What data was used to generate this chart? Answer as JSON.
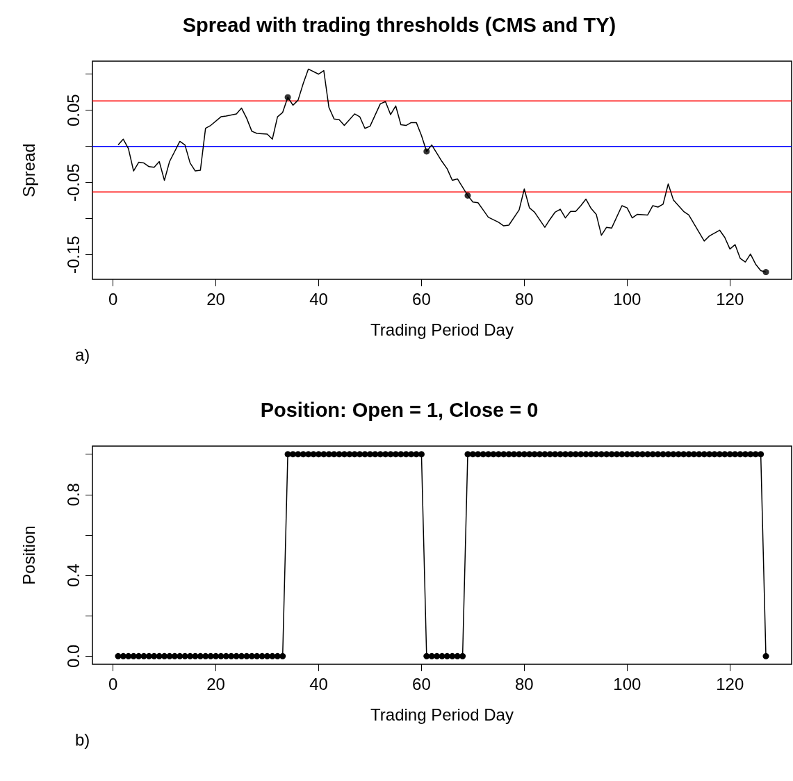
{
  "chart_data": [
    {
      "type": "line",
      "title": "Spread with trading thresholds (CMS and TY)",
      "xlabel": "Trading Period Day",
      "ylabel": "Spread",
      "annotations": [
        "a)"
      ],
      "grid": false,
      "xlim": [
        -4,
        132
      ],
      "xticks": [
        0,
        20,
        40,
        60,
        80,
        100,
        120
      ],
      "ylim": [
        -0.184,
        0.118
      ],
      "yticks": [
        {
          "value": -0.15,
          "label": "-0.15"
        },
        {
          "value": -0.1,
          "label": null
        },
        {
          "value": -0.05,
          "label": "-0.05"
        },
        {
          "value": 0,
          "label": null
        },
        {
          "value": 0.05,
          "label": "0.05"
        },
        {
          "value": 0.1,
          "label": null
        }
      ],
      "ref_lines": [
        {
          "axis": "y",
          "value": 0.063,
          "color": "#ff0000"
        },
        {
          "axis": "y",
          "value": 0,
          "color": "#0000ff"
        },
        {
          "axis": "y",
          "value": -0.063,
          "color": "#ff0000"
        }
      ],
      "series": [
        {
          "type": "line",
          "color": "#000000",
          "marker": "none",
          "x": [
            1,
            2,
            3,
            4,
            5,
            6,
            7,
            8,
            9,
            10,
            11,
            13,
            14,
            15,
            16,
            17,
            18,
            19,
            21,
            22,
            24,
            25,
            26,
            27,
            28,
            30,
            31,
            32,
            33,
            34,
            35,
            36,
            37,
            38,
            40,
            41,
            42,
            43,
            44,
            45,
            47,
            48,
            49,
            50,
            52,
            53,
            54,
            55,
            56,
            57,
            58,
            59,
            60,
            61,
            62,
            64,
            65,
            66,
            67,
            69,
            70,
            71,
            72,
            73,
            75,
            76,
            77,
            79,
            80,
            81,
            82,
            84,
            85,
            86,
            87,
            88,
            89,
            90,
            91,
            92,
            93,
            94,
            95,
            96,
            97,
            99,
            100,
            101,
            102,
            104,
            105,
            106,
            107,
            108,
            109,
            111,
            112,
            114,
            115,
            116,
            118,
            119,
            120,
            121,
            122,
            123,
            124,
            125,
            126,
            127
          ],
          "values": [
            0.002,
            0.01,
            -0.003,
            -0.034,
            -0.022,
            -0.023,
            -0.028,
            -0.029,
            -0.021,
            -0.047,
            -0.021,
            0.007,
            0.002,
            -0.023,
            -0.034,
            -0.033,
            0.025,
            0.029,
            0.041,
            0.042,
            0.045,
            0.053,
            0.039,
            0.021,
            0.018,
            0.017,
            0.01,
            0.041,
            0.047,
            0.068,
            0.057,
            0.064,
            0.087,
            0.107,
            0.1,
            0.105,
            0.054,
            0.038,
            0.037,
            0.029,
            0.045,
            0.041,
            0.025,
            0.028,
            0.059,
            0.062,
            0.044,
            0.056,
            0.03,
            0.029,
            0.033,
            0.033,
            0.015,
            -0.007,
            0.002,
            -0.021,
            -0.031,
            -0.047,
            -0.045,
            -0.068,
            -0.077,
            -0.078,
            -0.088,
            -0.098,
            -0.105,
            -0.11,
            -0.109,
            -0.088,
            -0.059,
            -0.085,
            -0.091,
            -0.112,
            -0.101,
            -0.091,
            -0.087,
            -0.099,
            -0.09,
            -0.09,
            -0.082,
            -0.073,
            -0.086,
            -0.094,
            -0.123,
            -0.112,
            -0.113,
            -0.082,
            -0.085,
            -0.099,
            -0.094,
            -0.095,
            -0.082,
            -0.084,
            -0.08,
            -0.052,
            -0.074,
            -0.09,
            -0.095,
            -0.119,
            -0.131,
            -0.124,
            -0.116,
            -0.126,
            -0.142,
            -0.136,
            -0.155,
            -0.16,
            -0.149,
            -0.163,
            -0.172,
            -0.174
          ]
        },
        {
          "type": "scatter",
          "color": "#000000",
          "marker": "circle",
          "x": [
            34,
            61,
            69,
            127
          ],
          "values": [
            0.068,
            -0.007,
            -0.068,
            -0.174
          ]
        }
      ]
    },
    {
      "type": "line",
      "title": "Position: Open = 1, Close = 0",
      "xlabel": "Trading Period Day",
      "ylabel": "Position",
      "annotations": [
        "b)"
      ],
      "grid": false,
      "xlim": [
        -4,
        132
      ],
      "xticks": [
        0,
        20,
        40,
        60,
        80,
        100,
        120
      ],
      "ylim": [
        -0.04,
        1.04
      ],
      "yticks": [
        {
          "value": 0,
          "label": "0.0"
        },
        {
          "value": 0.2,
          "label": null
        },
        {
          "value": 0.4,
          "label": "0.4"
        },
        {
          "value": 0.6,
          "label": null
        },
        {
          "value": 0.8,
          "label": "0.8"
        },
        {
          "value": 1,
          "label": null
        }
      ],
      "series": [
        {
          "type": "line",
          "color": "#000000",
          "marker": "circle",
          "x": [
            1,
            2,
            3,
            4,
            5,
            6,
            7,
            8,
            9,
            10,
            11,
            12,
            13,
            14,
            15,
            16,
            17,
            18,
            19,
            20,
            21,
            22,
            23,
            24,
            25,
            26,
            27,
            28,
            29,
            30,
            31,
            32,
            33,
            34,
            35,
            36,
            37,
            38,
            39,
            40,
            41,
            42,
            43,
            44,
            45,
            46,
            47,
            48,
            49,
            50,
            51,
            52,
            53,
            54,
            55,
            56,
            57,
            58,
            59,
            60,
            61,
            62,
            63,
            64,
            65,
            66,
            67,
            68,
            69,
            70,
            71,
            72,
            73,
            74,
            75,
            76,
            77,
            78,
            79,
            80,
            81,
            82,
            83,
            84,
            85,
            86,
            87,
            88,
            89,
            90,
            91,
            92,
            93,
            94,
            95,
            96,
            97,
            98,
            99,
            100,
            101,
            102,
            103,
            104,
            105,
            106,
            107,
            108,
            109,
            110,
            111,
            112,
            113,
            114,
            115,
            116,
            117,
            118,
            119,
            120,
            121,
            122,
            123,
            124,
            125,
            126,
            127
          ],
          "values": [
            0,
            0,
            0,
            0,
            0,
            0,
            0,
            0,
            0,
            0,
            0,
            0,
            0,
            0,
            0,
            0,
            0,
            0,
            0,
            0,
            0,
            0,
            0,
            0,
            0,
            0,
            0,
            0,
            0,
            0,
            0,
            0,
            0,
            1,
            1,
            1,
            1,
            1,
            1,
            1,
            1,
            1,
            1,
            1,
            1,
            1,
            1,
            1,
            1,
            1,
            1,
            1,
            1,
            1,
            1,
            1,
            1,
            1,
            1,
            1,
            0,
            0,
            0,
            0,
            0,
            0,
            0,
            0,
            1,
            1,
            1,
            1,
            1,
            1,
            1,
            1,
            1,
            1,
            1,
            1,
            1,
            1,
            1,
            1,
            1,
            1,
            1,
            1,
            1,
            1,
            1,
            1,
            1,
            1,
            1,
            1,
            1,
            1,
            1,
            1,
            1,
            1,
            1,
            1,
            1,
            1,
            1,
            1,
            1,
            1,
            1,
            1,
            1,
            1,
            1,
            1,
            1,
            1,
            1,
            1,
            1,
            1,
            1,
            1,
            1,
            1,
            0
          ]
        }
      ]
    }
  ]
}
